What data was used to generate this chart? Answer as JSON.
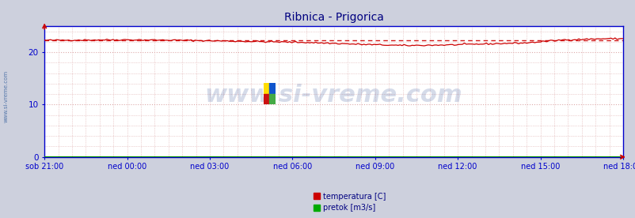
{
  "title": "Ribnica - Prigorica",
  "title_color": "#000080",
  "title_fontsize": 10,
  "background_color": "#cdd0dd",
  "plot_bg_color": "#ffffff",
  "x_labels": [
    "sob 21:00",
    "ned 00:00",
    "ned 03:00",
    "ned 06:00",
    "ned 09:00",
    "ned 12:00",
    "ned 15:00",
    "ned 18:00"
  ],
  "x_label_color": "#000080",
  "y_ticks": [
    0,
    10,
    20
  ],
  "y_max": 25,
  "y_min": 0,
  "y_label_color": "#000080",
  "watermark": "www.si-vreme.com",
  "watermark_color": "#1a3a8a",
  "watermark_fontsize": 22,
  "watermark_alpha": 0.18,
  "left_label": "www.si-vreme.com",
  "left_label_color": "#5577aa",
  "grid_color": "#ddaaaa",
  "temp_line_color": "#cc0000",
  "temp_max_line_color": "#cc0000",
  "flow_line_color": "#008800",
  "axis_color": "#0000cc",
  "legend_temp_color": "#cc0000",
  "legend_flow_color": "#00aa00",
  "n_points": 289,
  "temp_max_value": 22.3,
  "flow_value": 0.03
}
